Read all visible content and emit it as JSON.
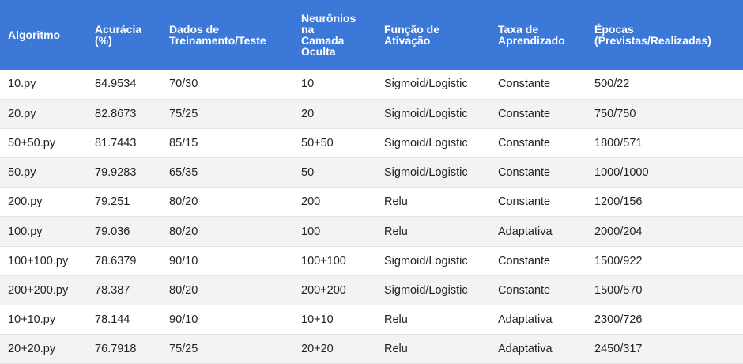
{
  "table": {
    "headers": [
      "Algoritmo",
      "Acurácia (%)",
      "Dados de Treinamento/Teste",
      "Neurônios na Camada Oculta",
      "Função de Ativação",
      "Taxa de Aprendizado",
      "Épocas (Previstas/Realizadas)"
    ],
    "rows": [
      [
        "10.py",
        "84.9534",
        "70/30",
        "10",
        "Sigmoid/Logistic",
        "Constante",
        "500/22"
      ],
      [
        "20.py",
        "82.8673",
        "75/25",
        "20",
        "Sigmoid/Logistic",
        "Constante",
        "750/750"
      ],
      [
        "50+50.py",
        "81.7443",
        "85/15",
        "50+50",
        "Sigmoid/Logistic",
        "Constante",
        "1800/571"
      ],
      [
        "50.py",
        "79.9283",
        "65/35",
        "50",
        "Sigmoid/Logistic",
        "Constante",
        "1000/1000"
      ],
      [
        "200.py",
        "79.251",
        "80/20",
        "200",
        "Relu",
        "Constante",
        "1200/156"
      ],
      [
        "100.py",
        "79.036",
        "80/20",
        "100",
        "Relu",
        "Adaptativa",
        "2000/204"
      ],
      [
        "100+100.py",
        "78.6379",
        "90/10",
        "100+100",
        "Sigmoid/Logistic",
        "Constante",
        "1500/922"
      ],
      [
        "200+200.py",
        "78.387",
        "80/20",
        "200+200",
        "Sigmoid/Logistic",
        "Constante",
        "1500/570"
      ],
      [
        "10+10.py",
        "78.144",
        "90/10",
        "10+10",
        "Relu",
        "Adaptativa",
        "2300/726"
      ],
      [
        "20+20.py",
        "76.7918",
        "75/25",
        "20+20",
        "Relu",
        "Adaptativa",
        "2450/317"
      ]
    ]
  },
  "colors": {
    "header_bg": "#3c78d8",
    "header_text": "#ffffff",
    "row_alt_bg": "#f3f3f3",
    "row_border": "#e3e3e3",
    "body_text": "#222222"
  }
}
